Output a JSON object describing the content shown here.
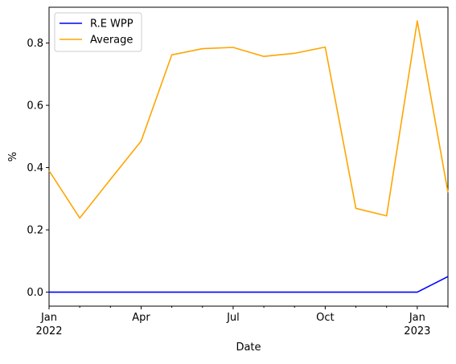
{
  "chart_data": {
    "type": "line",
    "title": "",
    "xlabel": "Date",
    "ylabel": "%",
    "x": [
      "2022-01",
      "2022-02",
      "2022-03",
      "2022-04",
      "2022-05",
      "2022-06",
      "2022-07",
      "2022-08",
      "2022-09",
      "2022-10",
      "2022-11",
      "2022-12",
      "2023-01",
      "2023-02"
    ],
    "xlim": [
      "2022-01",
      "2023-02"
    ],
    "ylim": [
      -0.045,
      0.915
    ],
    "yticks": [
      "0.0",
      "0.2",
      "0.4",
      "0.6",
      "0.8"
    ],
    "xticks": [
      {
        "x": "2022-01",
        "label": "Jan",
        "sublabel": "2022",
        "major": true
      },
      {
        "x": "2022-02",
        "label": "",
        "sublabel": "",
        "major": false
      },
      {
        "x": "2022-03",
        "label": "",
        "sublabel": "",
        "major": false
      },
      {
        "x": "2022-04",
        "label": "Apr",
        "sublabel": "",
        "major": true
      },
      {
        "x": "2022-05",
        "label": "",
        "sublabel": "",
        "major": false
      },
      {
        "x": "2022-06",
        "label": "",
        "sublabel": "",
        "major": false
      },
      {
        "x": "2022-07",
        "label": "Jul",
        "sublabel": "",
        "major": true
      },
      {
        "x": "2022-08",
        "label": "",
        "sublabel": "",
        "major": false
      },
      {
        "x": "2022-09",
        "label": "",
        "sublabel": "",
        "major": false
      },
      {
        "x": "2022-10",
        "label": "Oct",
        "sublabel": "",
        "major": true
      },
      {
        "x": "2022-11",
        "label": "",
        "sublabel": "",
        "major": false
      },
      {
        "x": "2022-12",
        "label": "",
        "sublabel": "",
        "major": false
      },
      {
        "x": "2023-01",
        "label": "Jan",
        "sublabel": "2023",
        "major": true
      },
      {
        "x": "2023-02",
        "label": "",
        "sublabel": "",
        "major": false
      }
    ],
    "grid": false,
    "legend_position": "top-left",
    "series": [
      {
        "name": "R.E WPP",
        "color": "#0000ff",
        "values": [
          0.0,
          0.0,
          0.0,
          0.0,
          0.0,
          0.0,
          0.0,
          0.0,
          0.0,
          0.0,
          0.0,
          0.0,
          0.0,
          0.05
        ]
      },
      {
        "name": "Average",
        "color": "#ffa500",
        "values": [
          0.39,
          0.238,
          0.362,
          0.485,
          0.762,
          0.782,
          0.786,
          0.757,
          0.767,
          0.787,
          0.269,
          0.245,
          0.871,
          0.32
        ]
      }
    ]
  }
}
